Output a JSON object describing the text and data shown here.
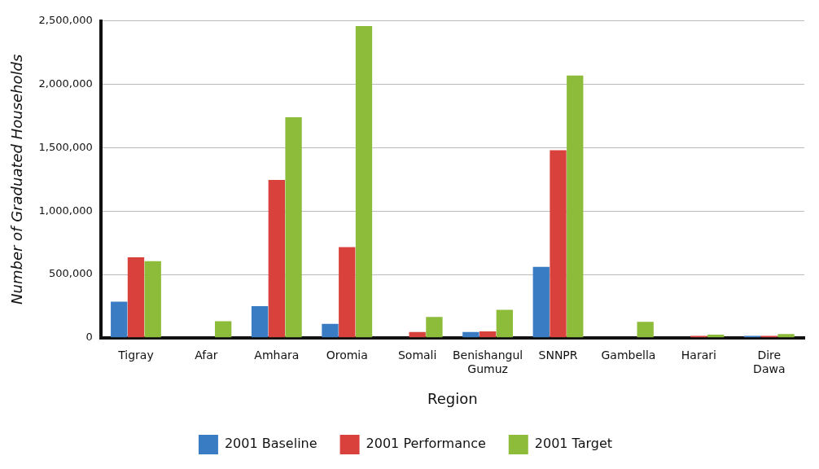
{
  "chart_data": {
    "type": "bar",
    "categories": [
      "Tigray",
      "Afar",
      "Amhara",
      "Oromia",
      "Somali",
      "Benishangul Gumuz",
      "SNNPR",
      "Gambella",
      "Harari",
      "Dire Dawa"
    ],
    "series": [
      {
        "name": "2001 Baseline",
        "color": "#3a7cc4",
        "values": [
          285000,
          0,
          250000,
          110000,
          0,
          45000,
          560000,
          0,
          0,
          15000
        ]
      },
      {
        "name": "2001 Performance",
        "color": "#d9413c",
        "values": [
          635000,
          0,
          1245000,
          715000,
          45000,
          50000,
          1480000,
          0,
          15000,
          15000
        ]
      },
      {
        "name": "2001 Target",
        "color": "#8dbb3a",
        "values": [
          605000,
          130000,
          1740000,
          2460000,
          165000,
          220000,
          2070000,
          125000,
          25000,
          30000
        ]
      }
    ],
    "xlabel": "Region",
    "ylabel": "Number of Graduated Households",
    "ylim": [
      0,
      2500000
    ],
    "yticks": [
      {
        "value": 0,
        "label": "0"
      },
      {
        "value": 500000,
        "label": "500,000"
      },
      {
        "value": 1000000,
        "label": "1,000,000"
      },
      {
        "value": 1500000,
        "label": "1,500,000"
      },
      {
        "value": 2000000,
        "label": "2,000,000"
      },
      {
        "value": 2500000,
        "label": "2,500,000"
      }
    ],
    "grid": "y",
    "legend": "bottom"
  }
}
